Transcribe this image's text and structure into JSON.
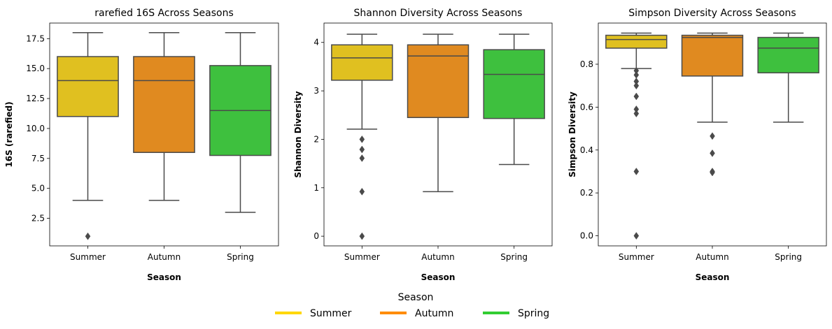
{
  "chart_data": [
    {
      "type": "box",
      "title": "rarefied 16S Across Seasons",
      "xlabel": "Season",
      "ylabel": "16S (rarefied)",
      "categories": [
        "Summer",
        "Autumn",
        "Spring"
      ],
      "ylim": [
        0.2,
        18.8
      ],
      "yticks": [
        2.5,
        5.0,
        7.5,
        10.0,
        12.5,
        15.0,
        17.5
      ],
      "ytick_labels": [
        "2.5",
        "5.0",
        "7.5",
        "10.0",
        "12.5",
        "15.0",
        "17.5"
      ],
      "boxes": [
        {
          "category": "Summer",
          "whisker_low": 4,
          "q1": 11,
          "median": 14,
          "q3": 16,
          "whisker_high": 18,
          "outliers": [
            1
          ]
        },
        {
          "category": "Autumn",
          "whisker_low": 4,
          "q1": 8,
          "median": 14,
          "q3": 16,
          "whisker_high": 18,
          "outliers": []
        },
        {
          "category": "Spring",
          "whisker_low": 3,
          "q1": 7.75,
          "median": 11.5,
          "q3": 15.25,
          "whisker_high": 18,
          "outliers": []
        }
      ]
    },
    {
      "type": "box",
      "title": "Shannon Diversity Across Seasons",
      "xlabel": "Season",
      "ylabel": "Shannon Diversity",
      "categories": [
        "Summer",
        "Autumn",
        "Spring"
      ],
      "ylim": [
        -0.2,
        4.4
      ],
      "yticks": [
        0,
        1,
        2,
        3,
        4
      ],
      "ytick_labels": [
        "0",
        "1",
        "2",
        "3",
        "4"
      ],
      "boxes": [
        {
          "category": "Summer",
          "whisker_low": 2.21,
          "q1": 3.22,
          "median": 3.68,
          "q3": 3.95,
          "whisker_high": 4.17,
          "outliers": [
            2.0,
            1.79,
            1.61,
            0.92,
            0.0
          ]
        },
        {
          "category": "Autumn",
          "whisker_low": 0.92,
          "q1": 2.45,
          "median": 3.72,
          "q3": 3.95,
          "whisker_high": 4.17,
          "outliers": []
        },
        {
          "category": "Spring",
          "whisker_low": 1.48,
          "q1": 2.43,
          "median": 3.34,
          "q3": 3.85,
          "whisker_high": 4.17,
          "outliers": []
        }
      ]
    },
    {
      "type": "box",
      "title": "Simpson Diversity Across Seasons",
      "xlabel": "Season",
      "ylabel": "Simpson Diversity",
      "categories": [
        "Summer",
        "Autumn",
        "Spring"
      ],
      "ylim": [
        -0.047,
        0.992
      ],
      "yticks": [
        0.0,
        0.2,
        0.4,
        0.6,
        0.8
      ],
      "ytick_labels": [
        "0.0",
        "0.2",
        "0.4",
        "0.6",
        "0.8"
      ],
      "boxes": [
        {
          "category": "Summer",
          "whisker_low": 0.78,
          "q1": 0.875,
          "median": 0.915,
          "q3": 0.935,
          "whisker_high": 0.945,
          "outliers": [
            0.77,
            0.75,
            0.72,
            0.7,
            0.65,
            0.59,
            0.57,
            0.3,
            0.0
          ]
        },
        {
          "category": "Autumn",
          "whisker_low": 0.53,
          "q1": 0.745,
          "median": 0.925,
          "q3": 0.935,
          "whisker_high": 0.945,
          "outliers": [
            0.465,
            0.385,
            0.3,
            0.295
          ]
        },
        {
          "category": "Spring",
          "whisker_low": 0.53,
          "q1": 0.76,
          "median": 0.875,
          "q3": 0.925,
          "whisker_high": 0.945,
          "outliers": []
        }
      ]
    }
  ],
  "legend": {
    "title": "Season",
    "placement": "bottom-center",
    "items": [
      {
        "label": "Summer",
        "color": "#FFD700"
      },
      {
        "label": "Autumn",
        "color": "#FF8C00"
      },
      {
        "label": "Spring",
        "color": "#32CD32"
      }
    ]
  },
  "colors": {
    "Summer": "#E0C020",
    "Autumn": "#E08A20",
    "Spring": "#3EC03E",
    "edge": "#4a4a4a"
  }
}
